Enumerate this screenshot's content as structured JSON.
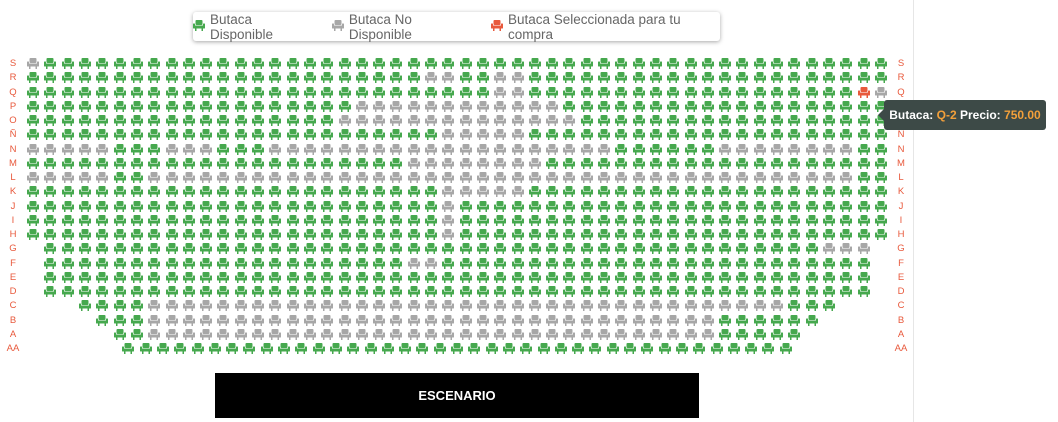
{
  "colors": {
    "available": "#46a84e",
    "unavailable": "#a7a7a7",
    "selected": "#e8593c",
    "row_label": "#e8593c"
  },
  "legend": [
    {
      "label": "Butaca Disponible",
      "status": "available",
      "icon": "seat-icon"
    },
    {
      "label": "Butaca No Disponible",
      "status": "unavailable",
      "icon": "seat-icon"
    },
    {
      "label": "Butaca Seleccionada para tu compra",
      "status": "selected",
      "icon": "seat-icon"
    }
  ],
  "row_labels": [
    "S",
    "R",
    "Q",
    "P",
    "O",
    "Ñ",
    "N",
    "M",
    "L",
    "K",
    "J",
    "I",
    "H",
    "G",
    "F",
    "E",
    "D",
    "C",
    "B",
    "A",
    "AA"
  ],
  "seating": {
    "upper_rows": [
      "S",
      "R",
      "Q",
      "P",
      "O",
      "Ñ",
      "N",
      "M",
      "L",
      "K",
      "J",
      "I",
      "H"
    ],
    "upper_seats_per_row": 50,
    "lower_rows": [
      {
        "row": "G",
        "seats": 48
      },
      {
        "row": "F",
        "seats": 48
      },
      {
        "row": "E",
        "seats": 48
      },
      {
        "row": "D",
        "seats": 48
      },
      {
        "row": "C",
        "seats": 44
      },
      {
        "row": "B",
        "seats": 42
      },
      {
        "row": "A",
        "seats": 40
      },
      {
        "row": "AA",
        "seats": 39
      }
    ],
    "unavailable": {
      "S": [
        0
      ],
      "R": [
        23,
        24,
        27,
        28
      ],
      "Q": [
        27,
        28,
        49
      ],
      "P": [
        19,
        20,
        21,
        22,
        23,
        24,
        25,
        26,
        27,
        28,
        29,
        30
      ],
      "O": [
        18,
        19,
        20,
        21,
        22,
        23,
        24,
        25,
        26,
        27,
        28,
        29,
        30,
        31
      ],
      "Ñ": [
        24,
        25,
        26,
        27,
        28
      ],
      "N": [
        0,
        1,
        2,
        3,
        4,
        8,
        9,
        10,
        14,
        15,
        16,
        17,
        18,
        19,
        20,
        21,
        22,
        23,
        24,
        25,
        26,
        27,
        28,
        29,
        30,
        31,
        32,
        33,
        40,
        41,
        42,
        43,
        44,
        45,
        46,
        47
      ],
      "M": [
        22,
        23,
        24,
        25,
        26,
        27,
        28,
        29
      ],
      "L": [
        0,
        1,
        2,
        3,
        4,
        7,
        8,
        9,
        10,
        11,
        12,
        13,
        14,
        15,
        16,
        17,
        18,
        19,
        20,
        21,
        22,
        23,
        24,
        25,
        26,
        27,
        28,
        29,
        30,
        31,
        32,
        33,
        34,
        35,
        36,
        37,
        38,
        39,
        40,
        41,
        42,
        43,
        44,
        45,
        46,
        47
      ],
      "K": [
        24,
        25,
        26,
        27,
        28
      ],
      "J": [
        24
      ],
      "I": [
        24
      ],
      "H": [
        24
      ],
      "G": [
        45,
        46,
        47
      ],
      "F": [
        21,
        22
      ],
      "E": [],
      "D": [],
      "C": [
        4,
        5,
        6,
        7,
        8,
        9,
        10,
        11,
        12,
        13,
        14,
        15,
        16,
        17,
        18,
        19,
        20,
        21,
        22,
        23,
        24,
        25,
        26,
        27,
        28,
        29,
        30,
        31,
        32,
        33,
        34,
        35,
        36,
        37,
        38,
        39,
        40
      ],
      "B": [
        3,
        4,
        5,
        6,
        7,
        8,
        9,
        10,
        11,
        12,
        13,
        14,
        15,
        16,
        17,
        18,
        19,
        20,
        21,
        22,
        23,
        24,
        25,
        26,
        27,
        28,
        29,
        30,
        31,
        32,
        33,
        34,
        35
      ],
      "A": [
        2,
        3,
        4,
        5,
        6,
        7,
        8,
        9,
        10,
        11,
        12,
        13,
        14,
        15,
        16,
        17,
        18,
        19,
        20,
        21,
        22,
        23,
        24,
        25,
        26,
        27,
        28,
        29,
        30,
        31,
        32,
        33,
        34
      ],
      "AA": []
    },
    "selected": {
      "Q": [
        48
      ]
    }
  },
  "stage": {
    "label": "ESCENARIO"
  },
  "tooltip": {
    "seat_label": "Butaca:",
    "seat_value": "Q-2",
    "price_label": "Precio:",
    "price_value": "750.00"
  }
}
